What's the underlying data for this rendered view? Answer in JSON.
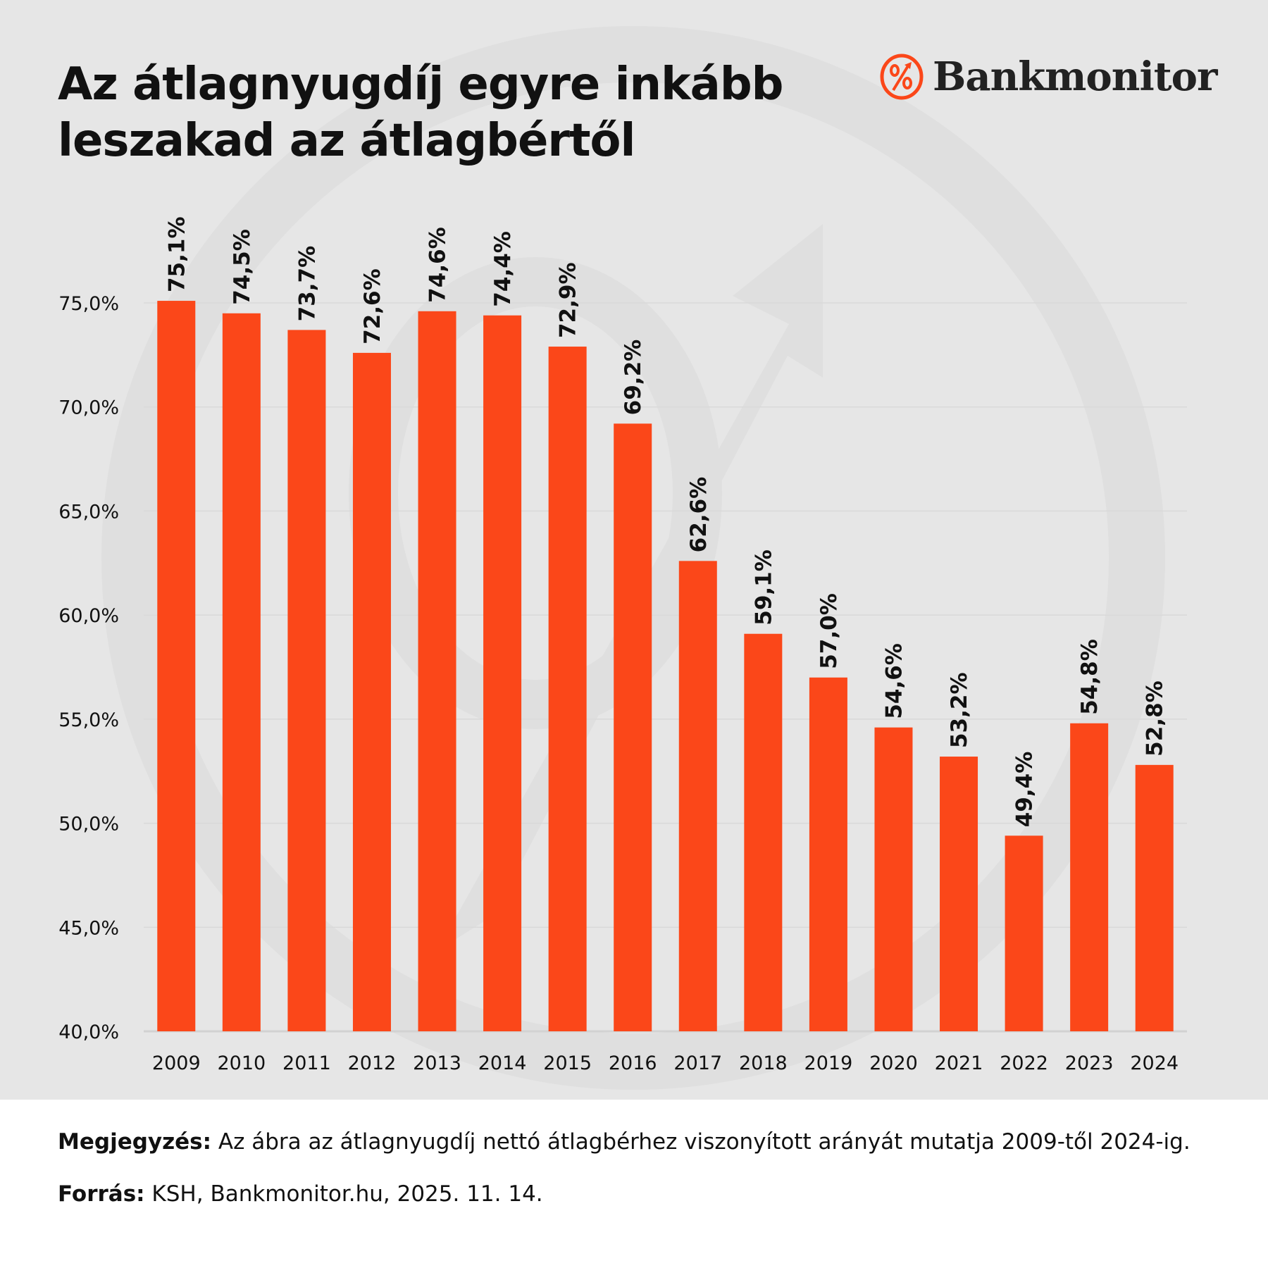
{
  "header": {
    "title_line1": "Az átlagnyugdíj egyre inkább",
    "title_line2": "leszakad az átlagbértől",
    "logo_text": "Bankmonitor"
  },
  "colors": {
    "bar": "#fb4719",
    "background": "#e6e6e6",
    "grid": "#d6d6d6",
    "text": "#111111"
  },
  "chart_data": {
    "type": "bar",
    "title": "Az átlagnyugdíj egyre inkább leszakad az átlagbértől",
    "xlabel": "",
    "ylabel": "",
    "categories": [
      "2009",
      "2010",
      "2011",
      "2012",
      "2013",
      "2014",
      "2015",
      "2016",
      "2017",
      "2018",
      "2019",
      "2020",
      "2021",
      "2022",
      "2023",
      "2024"
    ],
    "values": [
      75.1,
      74.5,
      73.7,
      72.6,
      74.6,
      74.4,
      72.9,
      69.2,
      62.6,
      59.1,
      57.0,
      54.6,
      53.2,
      49.4,
      54.8,
      52.8
    ],
    "data_labels": [
      "75,1%",
      "74,5%",
      "73,7%",
      "72,6%",
      "74,6%",
      "74,4%",
      "72,9%",
      "69,2%",
      "62,6%",
      "59,1%",
      "57,0%",
      "54,6%",
      "53,2%",
      "49,4%",
      "54,8%",
      "52,8%"
    ],
    "ylim": [
      40,
      75
    ],
    "yticks": [
      40,
      45,
      50,
      55,
      60,
      65,
      70,
      75
    ],
    "ytick_labels": [
      "40,0%",
      "45,0%",
      "50,0%",
      "55,0%",
      "60,0%",
      "65,0%",
      "70,0%",
      "75,0%"
    ],
    "grid": true,
    "legend": "none"
  },
  "notes": {
    "note_label": "Megjegyzés:",
    "note_text": " Az ábra az átlagnyugdíj nettó átlagbérhez viszonyított arányát mutatja 2009-től 2024-ig.",
    "source_label": "Forrás:",
    "source_text": " KSH, Bankmonitor.hu, 2025. 11. 14."
  }
}
